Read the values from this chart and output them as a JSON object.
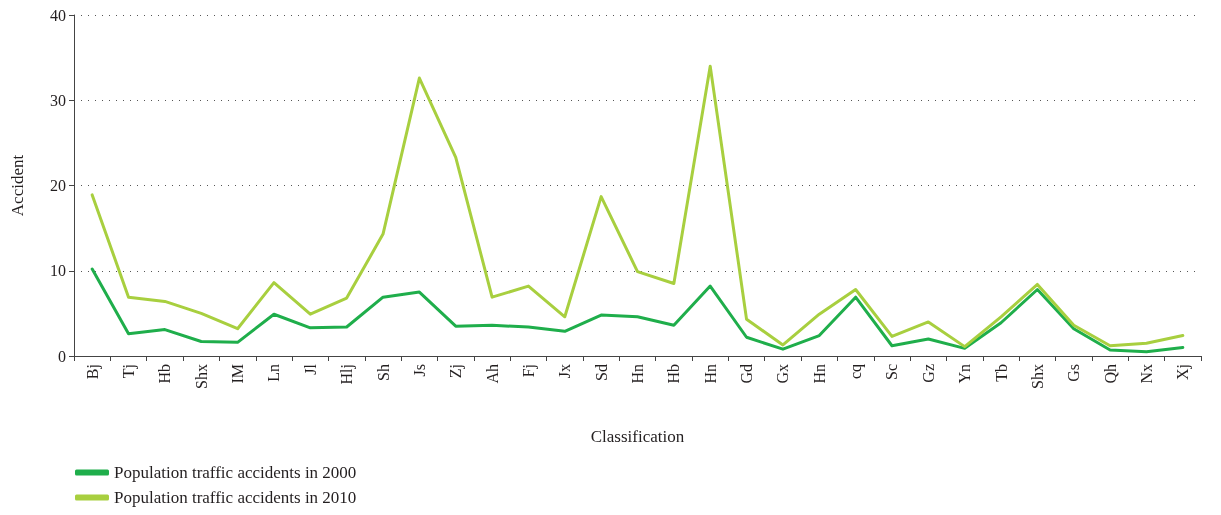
{
  "chart_data": {
    "type": "line",
    "xlabel": "Classification",
    "ylabel": "Accident",
    "categories": [
      "Bj",
      "Tj",
      "Hb",
      "Shx",
      "IM",
      "Ln",
      "Jl",
      "Hlj",
      "Sh",
      "Js",
      "Zj",
      "Ah",
      "Fj",
      "Jx",
      "Sd",
      "Hn",
      "Hb",
      "Hn",
      "Gd",
      "Gx",
      "Hn",
      "cq",
      "Sc",
      "Gz",
      "Yn",
      "Tb",
      "Shx",
      "Gs",
      "Qh",
      "Nx",
      "Xj"
    ],
    "series": [
      {
        "name": "Population traffic accidents in 2000",
        "color": "#1fae4b",
        "values": [
          10.2,
          2.6,
          3.1,
          1.7,
          1.6,
          4.9,
          3.3,
          3.4,
          6.9,
          7.5,
          3.5,
          3.6,
          3.4,
          2.9,
          4.8,
          4.6,
          3.6,
          8.2,
          2.2,
          0.8,
          2.4,
          6.9,
          1.2,
          2.0,
          0.9,
          3.9,
          7.8,
          3.2,
          0.7,
          0.5,
          1.0
        ]
      },
      {
        "name": "Population traffic accidents in 2010",
        "color": "#a8cf3f",
        "values": [
          18.9,
          6.9,
          6.4,
          5.0,
          3.2,
          8.6,
          4.9,
          6.8,
          14.3,
          32.6,
          23.3,
          6.9,
          8.2,
          4.6,
          18.7,
          9.9,
          8.5,
          34.0,
          4.3,
          1.3,
          4.9,
          7.8,
          2.3,
          4.0,
          1.1,
          4.6,
          8.4,
          3.6,
          1.2,
          1.5,
          2.4
        ]
      }
    ],
    "ylim": [
      0,
      40
    ],
    "yticks": [
      0,
      10,
      20,
      30,
      40
    ],
    "grid": "y",
    "legend": "bottom left",
    "marker": "none",
    "line_style": "solid"
  }
}
